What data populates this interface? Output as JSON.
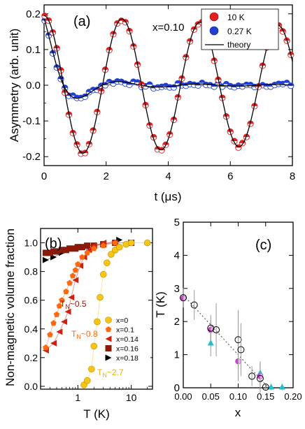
{
  "chart_data": [
    {
      "panel_label": "(a)",
      "type": "scatter",
      "annotation": "x=0.10",
      "xlabel": "t (μs)",
      "ylabel": "Asymmetry (arb. unit)",
      "xlim": [
        0,
        8
      ],
      "ylim": [
        -0.225,
        0.225
      ],
      "xticks": [
        "0",
        "2",
        "4",
        "6",
        "8"
      ],
      "yticks": [
        "-0.2",
        "-0.1",
        "0.0",
        "0.1",
        "0.2"
      ],
      "legend_position": "top-right",
      "series": [
        {
          "name": "10 K",
          "color": "#e02020",
          "model": {
            "A0": 0.195,
            "freq_MHz": 0.398,
            "decay_per_us": 0.08
          }
        },
        {
          "name": "0.27 K",
          "color": "#2040d0",
          "model": {
            "A0": 0.175,
            "freq_MHz": 0.398,
            "decay_per_us": 1.6,
            "tail": 0.0
          }
        },
        {
          "name": "theory",
          "color": "#000000"
        }
      ]
    },
    {
      "panel_label": "(b)",
      "type": "scatter",
      "xscale": "log",
      "xlabel": "T (K)",
      "ylabel": "Non-magnetic volume fraction",
      "xlim": [
        0.2,
        25
      ],
      "ylim": [
        -0.02,
        1.1
      ],
      "xticks": [
        "1",
        "10"
      ],
      "yticks": [
        "0.0",
        "0.2",
        "0.4",
        "0.6",
        "0.8",
        "1.0"
      ],
      "legend_position": "center-right",
      "annotations": [
        "T_N~0.5",
        "T_N~0.8",
        "T_N~2.7"
      ],
      "series": [
        {
          "name": "x=0",
          "color": "#f5c518",
          "marker": "circle",
          "points": [
            [
              1.3,
              0.01
            ],
            [
              1.5,
              0.04
            ],
            [
              1.8,
              0.12
            ],
            [
              2.0,
              0.28
            ],
            [
              2.3,
              0.45
            ],
            [
              2.6,
              0.62
            ],
            [
              3.0,
              0.78
            ],
            [
              3.5,
              0.86
            ],
            [
              4.2,
              0.92
            ],
            [
              5,
              0.95
            ],
            [
              6,
              0.97
            ],
            [
              8,
              0.99
            ],
            [
              10,
              1.0
            ],
            [
              20,
              1.0
            ]
          ]
        },
        {
          "name": "x=0.1",
          "color": "#ff6a10",
          "marker": "pentagon",
          "points": [
            [
              0.25,
              0.27
            ],
            [
              0.3,
              0.36
            ],
            [
              0.35,
              0.44
            ],
            [
              0.4,
              0.5
            ],
            [
              0.45,
              0.56
            ],
            [
              0.5,
              0.6
            ],
            [
              0.6,
              0.66
            ],
            [
              0.7,
              0.72
            ],
            [
              0.8,
              0.77
            ],
            [
              0.9,
              0.81
            ],
            [
              1.0,
              0.85
            ],
            [
              1.2,
              0.9
            ],
            [
              1.5,
              0.93
            ],
            [
              2,
              0.96
            ],
            [
              3,
              0.98
            ],
            [
              5,
              1.0
            ]
          ]
        },
        {
          "name": "x=0.14",
          "color": "#d02010",
          "marker": "triangle-left",
          "points": [
            [
              0.25,
              0.25
            ],
            [
              0.35,
              0.3
            ],
            [
              0.45,
              0.38
            ],
            [
              0.55,
              0.45
            ],
            [
              0.65,
              0.52
            ],
            [
              0.75,
              0.62
            ],
            [
              0.9,
              0.74
            ],
            [
              1.1,
              0.84
            ],
            [
              1.3,
              0.9
            ],
            [
              1.6,
              0.95
            ],
            [
              2,
              0.98
            ],
            [
              3,
              1.0
            ]
          ]
        },
        {
          "name": "x=0.16",
          "color": "#8b1a0a",
          "marker": "square",
          "points": [
            [
              0.25,
              0.93
            ],
            [
              0.3,
              0.93
            ],
            [
              0.35,
              0.94
            ],
            [
              0.4,
              0.94
            ],
            [
              0.5,
              0.95
            ],
            [
              0.6,
              0.95
            ],
            [
              0.7,
              0.96
            ],
            [
              0.9,
              0.96
            ],
            [
              1.0,
              0.97
            ],
            [
              1.2,
              0.97
            ],
            [
              1.5,
              0.98
            ],
            [
              2,
              0.98
            ],
            [
              3,
              0.99
            ],
            [
              5,
              1.0
            ],
            [
              10,
              1.0
            ]
          ]
        },
        {
          "name": "x=0.18",
          "color": "#000000",
          "marker": "triangle-right",
          "points": [
            [
              0.25,
              0.88
            ],
            [
              0.35,
              0.9
            ],
            [
              0.5,
              0.93
            ],
            [
              0.7,
              0.95
            ],
            [
              1.0,
              0.97
            ],
            [
              1.5,
              0.98
            ],
            [
              3,
              0.99
            ],
            [
              6,
              1.02
            ]
          ]
        }
      ]
    },
    {
      "panel_label": "(c)",
      "type": "scatter",
      "xlabel": "x",
      "ylabel": "T (K)",
      "xlim": [
        0,
        0.2
      ],
      "ylim": [
        0,
        5
      ],
      "xticks": [
        "0.00",
        "0.05",
        "0.10",
        "0.15",
        "0.20"
      ],
      "yticks": [
        "0",
        "1",
        "2",
        "3",
        "4",
        "5"
      ],
      "series": [
        {
          "marker": "open-circle",
          "color": "#000000",
          "points": [
            [
              0.0,
              2.72,
              0.3
            ],
            [
              0.02,
              2.5,
              0.45
            ],
            [
              0.05,
              1.8,
              0.4
            ],
            [
              0.06,
              1.75,
              0.8
            ],
            [
              0.1,
              1.45,
              0.9
            ],
            [
              0.105,
              1.15,
              0.8
            ],
            [
              0.125,
              0.35,
              0.3
            ],
            [
              0.14,
              0.28,
              0.45
            ],
            [
              0.15,
              0.02,
              0.1
            ]
          ]
        },
        {
          "marker": "half-circle",
          "color": "#d040d0",
          "points": [
            [
              0.0,
              2.7,
              0.15
            ],
            [
              0.05,
              1.75,
              0.3
            ],
            [
              0.1,
              0.8,
              0.6
            ],
            [
              0.14,
              0.35,
              0.4
            ]
          ]
        },
        {
          "marker": "triangle",
          "color": "#20c0d0",
          "points": [
            [
              0.05,
              1.35,
              0.4
            ],
            [
              0.14,
              0.45,
              0.35
            ],
            [
              0.16,
              0.02,
              0.1
            ],
            [
              0.18,
              0.02,
              0.1
            ]
          ]
        },
        {
          "name": "fit",
          "color": "#555555",
          "style": "dotted",
          "line": [
            [
              0.0,
              2.8
            ],
            [
              0.155,
              0.0
            ]
          ]
        }
      ]
    }
  ]
}
